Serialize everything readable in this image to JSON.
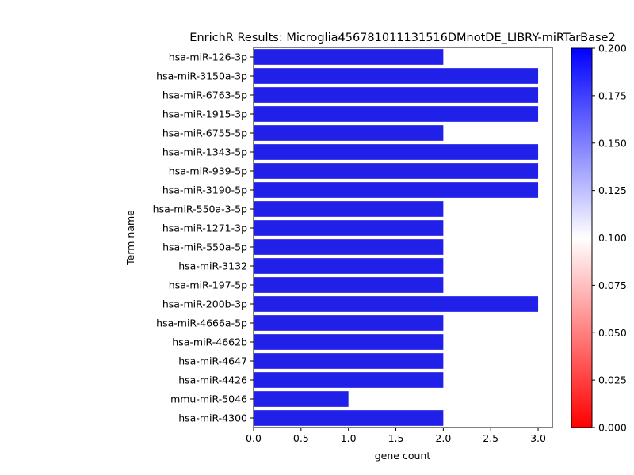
{
  "chart_data": {
    "type": "bar",
    "orientation": "horizontal",
    "title": "EnrichR Results: Microglia456781011131516DMnotDE_LIBRY-miRTarBase2",
    "xlabel": "gene count",
    "ylabel": "Term name",
    "xlim": [
      0,
      3.15
    ],
    "x_ticks": [
      "0.0",
      "0.5",
      "1.0",
      "1.5",
      "2.0",
      "2.5",
      "3.0"
    ],
    "grid": false,
    "legend": "none",
    "categories": [
      "hsa-miR-126-3p",
      "hsa-miR-3150a-3p",
      "hsa-miR-6763-5p",
      "hsa-miR-1915-3p",
      "hsa-miR-6755-5p",
      "hsa-miR-1343-5p",
      "hsa-miR-939-5p",
      "hsa-miR-3190-5p",
      "hsa-miR-550a-3-5p",
      "hsa-miR-1271-3p",
      "hsa-miR-550a-5p",
      "hsa-miR-3132",
      "hsa-miR-197-5p",
      "hsa-miR-200b-3p",
      "hsa-miR-4666a-5p",
      "hsa-miR-4662b",
      "hsa-miR-4647",
      "hsa-miR-4426",
      "mmu-miR-5046",
      "hsa-miR-4300"
    ],
    "values": [
      2,
      3,
      3,
      3,
      2,
      3,
      3,
      3,
      2,
      2,
      2,
      2,
      2,
      3,
      2,
      2,
      2,
      2,
      1,
      2
    ],
    "bar_color": "#2020e8",
    "colorbar": {
      "min": 0.0,
      "max": 0.2,
      "ticks": [
        "0.000",
        "0.025",
        "0.050",
        "0.075",
        "0.100",
        "0.125",
        "0.150",
        "0.175",
        "0.200"
      ],
      "colors": [
        "#ff0000",
        "#ffffff",
        "#0000ff"
      ]
    }
  }
}
